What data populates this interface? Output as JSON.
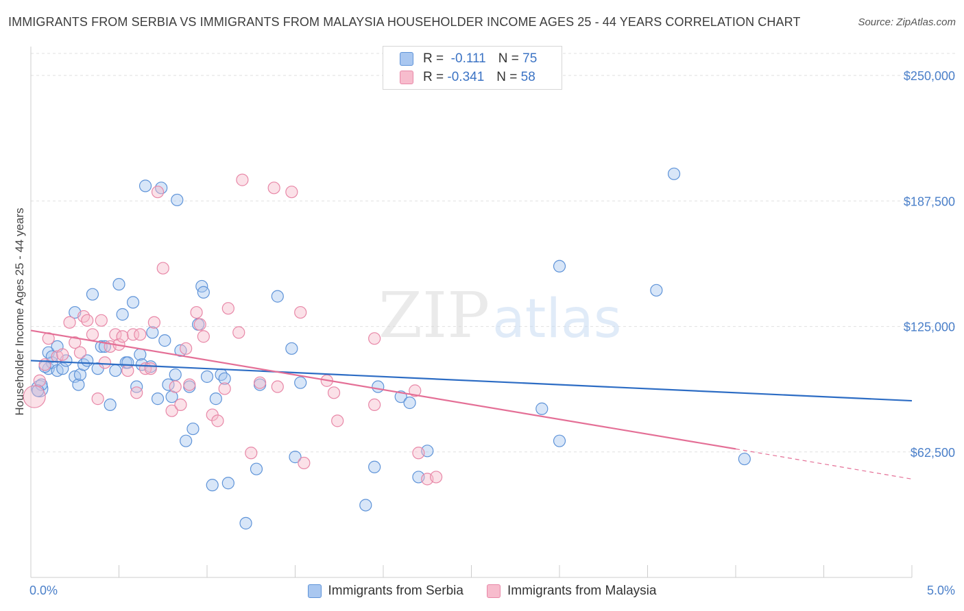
{
  "header": {
    "title": "IMMIGRANTS FROM SERBIA VS IMMIGRANTS FROM MALAYSIA HOUSEHOLDER INCOME AGES 25 - 44 YEARS CORRELATION CHART",
    "source": "Source: ZipAtlas.com"
  },
  "colors": {
    "serbia_fill": "#a9c7f0",
    "serbia_stroke": "#5e93d8",
    "serbia_line": "#2c6cc4",
    "malaysia_fill": "#f7bccd",
    "malaysia_stroke": "#e887a7",
    "malaysia_line": "#e46f96",
    "tick_text": "#4a7fc9",
    "grid": "#e0e0e0"
  },
  "legend_top": {
    "serbia": {
      "r_label": "R =",
      "r_value": "-0.111",
      "n_label": "N =",
      "n_value": "75"
    },
    "malaysia": {
      "r_label": "R =",
      "r_value": "-0.341",
      "n_label": "N =",
      "n_value": "58"
    }
  },
  "legend_bottom": {
    "serbia": "Immigrants from Serbia",
    "malaysia": "Immigrants from Malaysia"
  },
  "watermark": {
    "zip": "ZIP",
    "atlas": "atlas"
  },
  "chart_data": {
    "type": "scatter",
    "title": "IMMIGRANTS FROM SERBIA VS IMMIGRANTS FROM MALAYSIA HOUSEHOLDER INCOME AGES 25 - 44 YEARS CORRELATION CHART",
    "xlabel": "",
    "ylabel": "Householder Income Ages 25 - 44 years",
    "xlim": [
      0,
      5
    ],
    "ylim": [
      0,
      262000
    ],
    "x_tick_labels": [
      "0.0%",
      "5.0%"
    ],
    "y_ticks": [
      62500,
      125000,
      187500,
      250000
    ],
    "y_tick_labels": [
      "$62,500",
      "$125,000",
      "$187,500",
      "$250,000"
    ],
    "grid": "horizontal dashed",
    "legend_placement": "top-center and bottom",
    "series": [
      {
        "name": "Immigrants from Serbia",
        "r": -0.111,
        "n": 75,
        "trend": {
          "x": [
            0,
            5
          ],
          "y": [
            108000,
            88000
          ]
        },
        "points": [
          [
            0.05,
            94000
          ],
          [
            0.1,
            104000
          ],
          [
            0.1,
            112000
          ],
          [
            0.12,
            107000
          ],
          [
            0.15,
            115000
          ],
          [
            0.15,
            103000
          ],
          [
            0.18,
            104000
          ],
          [
            0.2,
            108000
          ],
          [
            0.25,
            132000
          ],
          [
            0.25,
            100000
          ],
          [
            0.27,
            96000
          ],
          [
            0.28,
            101000
          ],
          [
            0.3,
            106000
          ],
          [
            0.32,
            108000
          ],
          [
            0.35,
            141000
          ],
          [
            0.38,
            104000
          ],
          [
            0.4,
            115000
          ],
          [
            0.42,
            115000
          ],
          [
            0.45,
            86000
          ],
          [
            0.48,
            103000
          ],
          [
            0.5,
            146000
          ],
          [
            0.52,
            131000
          ],
          [
            0.54,
            107000
          ],
          [
            0.55,
            107000
          ],
          [
            0.58,
            137000
          ],
          [
            0.6,
            95000
          ],
          [
            0.62,
            111000
          ],
          [
            0.63,
            106000
          ],
          [
            0.65,
            195000
          ],
          [
            0.68,
            105000
          ],
          [
            0.69,
            122000
          ],
          [
            0.72,
            89000
          ],
          [
            0.74,
            194000
          ],
          [
            0.76,
            118000
          ],
          [
            0.78,
            96000
          ],
          [
            0.8,
            90000
          ],
          [
            0.82,
            101000
          ],
          [
            0.83,
            188000
          ],
          [
            0.85,
            113000
          ],
          [
            0.88,
            68000
          ],
          [
            0.9,
            95000
          ],
          [
            0.92,
            74000
          ],
          [
            0.95,
            126000
          ],
          [
            0.97,
            145000
          ],
          [
            0.98,
            142000
          ],
          [
            1.0,
            100000
          ],
          [
            1.03,
            46000
          ],
          [
            1.05,
            89000
          ],
          [
            1.08,
            101000
          ],
          [
            1.1,
            99000
          ],
          [
            1.12,
            47000
          ],
          [
            1.22,
            27000
          ],
          [
            1.28,
            54000
          ],
          [
            1.3,
            96000
          ],
          [
            1.4,
            140000
          ],
          [
            1.48,
            114000
          ],
          [
            1.5,
            60000
          ],
          [
            1.53,
            97000
          ],
          [
            1.9,
            36000
          ],
          [
            1.95,
            55000
          ],
          [
            1.97,
            95000
          ],
          [
            2.1,
            90000
          ],
          [
            2.15,
            87000
          ],
          [
            2.2,
            50000
          ],
          [
            2.25,
            63000
          ],
          [
            2.9,
            84000
          ],
          [
            3.0,
            68000
          ],
          [
            3.0,
            155000
          ],
          [
            3.55,
            143000
          ],
          [
            3.65,
            201000
          ],
          [
            4.05,
            59000
          ],
          [
            0.06,
            96000
          ],
          [
            0.04,
            93000
          ],
          [
            0.08,
            105000
          ],
          [
            0.12,
            110000
          ]
        ]
      },
      {
        "name": "Immigrants from Malaysia",
        "r": -0.341,
        "n": 58,
        "trend": {
          "x": [
            0,
            4.0
          ],
          "y": [
            123000,
            64000
          ]
        },
        "trend_dashed": {
          "x": [
            4.0,
            5.0
          ],
          "y": [
            64000,
            49000
          ]
        },
        "points": [
          [
            0.02,
            90000
          ],
          [
            0.05,
            98000
          ],
          [
            0.08,
            106000
          ],
          [
            0.1,
            119000
          ],
          [
            0.15,
            110000
          ],
          [
            0.18,
            111000
          ],
          [
            0.22,
            127000
          ],
          [
            0.25,
            117000
          ],
          [
            0.28,
            112000
          ],
          [
            0.3,
            130000
          ],
          [
            0.32,
            128000
          ],
          [
            0.35,
            121000
          ],
          [
            0.38,
            89000
          ],
          [
            0.4,
            128000
          ],
          [
            0.42,
            107000
          ],
          [
            0.45,
            115000
          ],
          [
            0.48,
            121000
          ],
          [
            0.5,
            116000
          ],
          [
            0.52,
            120000
          ],
          [
            0.55,
            103000
          ],
          [
            0.58,
            121000
          ],
          [
            0.6,
            92000
          ],
          [
            0.62,
            121000
          ],
          [
            0.65,
            104000
          ],
          [
            0.68,
            104000
          ],
          [
            0.7,
            127000
          ],
          [
            0.72,
            192000
          ],
          [
            0.75,
            154000
          ],
          [
            0.8,
            83000
          ],
          [
            0.82,
            95000
          ],
          [
            0.85,
            86000
          ],
          [
            0.88,
            114000
          ],
          [
            0.9,
            96000
          ],
          [
            0.94,
            132000
          ],
          [
            0.96,
            126000
          ],
          [
            0.98,
            120000
          ],
          [
            1.03,
            81000
          ],
          [
            1.06,
            78000
          ],
          [
            1.1,
            94000
          ],
          [
            1.12,
            134000
          ],
          [
            1.18,
            122000
          ],
          [
            1.2,
            198000
          ],
          [
            1.25,
            62000
          ],
          [
            1.3,
            97000
          ],
          [
            1.38,
            194000
          ],
          [
            1.4,
            95000
          ],
          [
            1.48,
            192000
          ],
          [
            1.53,
            132000
          ],
          [
            1.55,
            57000
          ],
          [
            1.68,
            98000
          ],
          [
            1.72,
            92000
          ],
          [
            1.74,
            78000
          ],
          [
            1.95,
            119000
          ],
          [
            1.95,
            86000
          ],
          [
            2.18,
            93000
          ],
          [
            2.2,
            62000
          ],
          [
            2.25,
            49000
          ],
          [
            2.3,
            50000
          ]
        ]
      }
    ]
  }
}
